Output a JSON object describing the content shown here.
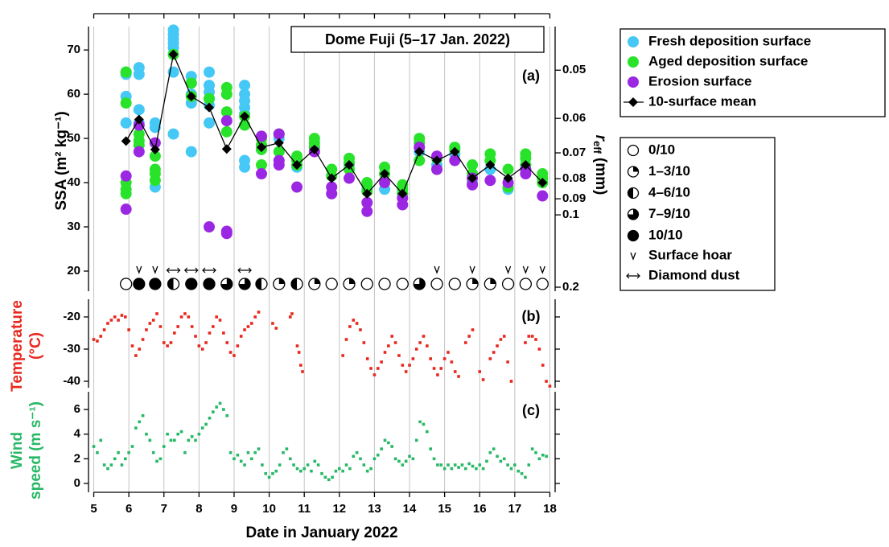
{
  "chart_data": [
    {
      "type": "scatter",
      "title": "Dome Fuji (5–17 Jan. 2022)",
      "panel_label": "(a)",
      "ylabel": "SSA (m² kg⁻¹)",
      "y2label": {
        "symbol": "r",
        "subscript": "eff",
        "unit": "(mm)"
      },
      "xlim": [
        4.85,
        18.15
      ],
      "ylim": [
        15.45,
        75.3
      ],
      "yticks": [
        20,
        30,
        40,
        50,
        60,
        70
      ],
      "y2ticks": [
        0.05,
        0.06,
        0.07,
        0.08,
        0.09,
        0.1,
        0.2
      ],
      "series": [
        {
          "name": "Fresh deposition surface",
          "color": "#45c8f5",
          "x": [
            5.92,
            5.92,
            5.92,
            5.92,
            6.29,
            6.29,
            6.29,
            6.29,
            6.75,
            6.75,
            6.75,
            7.27,
            7.27,
            7.27,
            7.27,
            7.27,
            7.27,
            7.27,
            7.78,
            7.78,
            7.78,
            7.78,
            7.78,
            8.29,
            8.29,
            8.29,
            8.29,
            8.29,
            8.29,
            9.3,
            9.3,
            9.3,
            9.3,
            9.3,
            9.3,
            9.3,
            9.78,
            10.28,
            10.79,
            11.29,
            11.78,
            12.28,
            12.79,
            13.29,
            13.8,
            14.28,
            14.78,
            15.29,
            15.79,
            16.3,
            16.81,
            17.31,
            17.79
          ],
          "values": [
            65,
            64.5,
            59.5,
            53.5,
            66,
            64.5,
            56.5,
            53.5,
            53.5,
            52.5,
            39,
            74.5,
            73.5,
            72.5,
            71.5,
            70.5,
            65,
            51,
            64,
            62.5,
            60,
            58,
            47,
            65,
            62,
            60.5,
            59,
            57.5,
            53.5,
            62,
            60,
            58.5,
            57,
            55.5,
            45,
            43.5,
            47.5,
            50,
            43.5,
            48,
            37.5,
            44,
            38.5,
            38.5,
            37.5,
            47,
            44,
            46.5,
            40,
            43,
            38.5,
            43,
            40
          ]
        },
        {
          "name": "Aged deposition surface",
          "color": "#28e32a",
          "x": [
            5.92,
            5.92,
            5.92,
            5.92,
            5.92,
            6.29,
            6.29,
            6.29,
            6.75,
            6.75,
            6.75,
            6.75,
            7.27,
            7.78,
            7.78,
            8.29,
            8.79,
            8.79,
            8.79,
            8.79,
            9.3,
            9.3,
            9.78,
            9.78,
            9.78,
            9.78,
            10.28,
            10.28,
            10.79,
            10.79,
            10.79,
            11.29,
            11.29,
            11.29,
            11.78,
            11.78,
            12.28,
            12.28,
            12.28,
            12.79,
            12.79,
            12.79,
            13.29,
            13.29,
            13.8,
            13.8,
            13.8,
            14.28,
            14.28,
            14.28,
            14.78,
            14.78,
            15.29,
            15.29,
            15.79,
            15.79,
            16.3,
            16.3,
            16.81,
            16.81,
            17.31,
            17.31,
            17.31,
            17.79,
            17.79,
            17.79
          ],
          "values": [
            65,
            58,
            40,
            38.5,
            37.5,
            51,
            49.5,
            48.5,
            46,
            43,
            42,
            40.5,
            69,
            62.5,
            59.5,
            59,
            61.5,
            60,
            56,
            51.5,
            53,
            55,
            50,
            48.5,
            47.5,
            44,
            51,
            47,
            46,
            45,
            44,
            50,
            49,
            48,
            43,
            41.5,
            45.5,
            44.5,
            43,
            40,
            39.5,
            38,
            43.5,
            42,
            39.5,
            38.5,
            37.5,
            50,
            49,
            45,
            45.5,
            43,
            48,
            47.5,
            44,
            42,
            46.5,
            45,
            43,
            39,
            46.5,
            45.5,
            44,
            42,
            41,
            40
          ]
        },
        {
          "name": "Erosion surface",
          "color": "#9b27e3",
          "x": [
            5.92,
            5.92,
            6.29,
            6.29,
            6.75,
            8.29,
            8.79,
            8.79,
            8.79,
            9.78,
            9.78,
            10.28,
            10.28,
            10.28,
            10.79,
            11.29,
            11.78,
            11.78,
            12.28,
            12.79,
            12.79,
            13.29,
            13.8,
            13.8,
            14.28,
            14.78,
            14.78,
            15.29,
            15.79,
            15.79,
            16.3,
            16.81,
            17.31,
            17.31,
            17.79
          ],
          "values": [
            41.5,
            34,
            53,
            47,
            49,
            30,
            29,
            28.5,
            54,
            50.5,
            42,
            51,
            45,
            44,
            39,
            47,
            39,
            37.5,
            41,
            35.5,
            33.5,
            40,
            36.5,
            35,
            48,
            46,
            43,
            45,
            41,
            39.5,
            40.5,
            40,
            43,
            42,
            37
          ]
        },
        {
          "name": "10-surface mean",
          "color": "#000000",
          "marker": "diamond",
          "line": true,
          "x": [
            5.92,
            6.29,
            6.75,
            7.27,
            7.78,
            8.29,
            8.79,
            9.3,
            9.78,
            10.28,
            10.79,
            11.29,
            11.78,
            12.28,
            12.79,
            13.29,
            13.8,
            14.28,
            14.78,
            15.29,
            15.79,
            16.3,
            16.81,
            17.31,
            17.79
          ],
          "values": [
            49.4,
            54.3,
            47.5,
            69,
            59.5,
            57,
            47.6,
            55,
            48,
            49,
            44,
            47.5,
            41,
            44,
            37.5,
            42,
            37.5,
            47,
            45,
            47,
            41,
            44,
            41,
            44,
            40
          ]
        }
      ],
      "obs_x": [
        5.92,
        6.29,
        6.75,
        7.27,
        7.78,
        8.29,
        8.79,
        9.3,
        9.78,
        10.28,
        10.79,
        11.29,
        11.78,
        12.28,
        12.79,
        13.29,
        13.8,
        14.28,
        14.78,
        15.29,
        15.79,
        16.3,
        16.81,
        17.31,
        17.79
      ],
      "cloud_legend": [
        "0/10",
        "1–3/10",
        "4–6/10",
        "7–9/10",
        "10/10"
      ],
      "cloud_cover": [
        "0/10",
        "10/10",
        "10/10",
        "4–6/10",
        "10/10",
        "10/10",
        "7–9/10",
        "7–9/10",
        "4–6/10",
        "1–3/10",
        "4–6/10",
        "1–3/10",
        "0/10",
        "1–3/10",
        "0/10",
        "0/10",
        "0/10",
        "7–9/10",
        "0/10",
        "0/10",
        "1–3/10",
        "1–3/10",
        "0/10",
        "0/10",
        "0/10"
      ],
      "surface_hoar": {
        "label": "Surface hoar",
        "x": [
          6.29,
          6.75,
          14.78,
          15.79,
          16.81,
          17.31,
          17.79
        ]
      },
      "diamond_dust": {
        "label": "Diamond dust",
        "x": [
          7.27,
          7.78,
          8.29,
          9.3
        ]
      }
    },
    {
      "type": "scatter",
      "panel_label": "(b)",
      "ylabel": [
        "Temperature",
        "(°C)"
      ],
      "xlim": [
        4.85,
        18.15
      ],
      "ylim": [
        -42,
        -14.5
      ],
      "yticks": [
        -20,
        -30,
        -40
      ],
      "series": [
        {
          "color": "#e8281e",
          "x": [
            5.0,
            5.1,
            5.2,
            5.3,
            5.4,
            5.5,
            5.6,
            5.7,
            5.8,
            5.9,
            6.0,
            6.1,
            6.2,
            6.3,
            6.4,
            6.5,
            6.6,
            6.7,
            6.8,
            6.9,
            7.0,
            7.1,
            7.2,
            7.3,
            7.4,
            7.5,
            7.6,
            7.7,
            7.8,
            7.9,
            8.0,
            8.1,
            8.2,
            8.3,
            8.4,
            8.5,
            8.6,
            8.7,
            8.8,
            8.9,
            9.0,
            9.1,
            9.2,
            9.3,
            9.4,
            9.5,
            9.6,
            9.7,
            10.1,
            10.2,
            10.6,
            10.65,
            10.8,
            10.85,
            10.9,
            10.95,
            12.1,
            12.2,
            12.3,
            12.4,
            12.5,
            12.6,
            12.7,
            12.8,
            12.9,
            13.0,
            13.1,
            13.2,
            13.3,
            13.4,
            13.5,
            13.6,
            13.7,
            13.8,
            13.9,
            14.0,
            14.1,
            14.2,
            14.3,
            14.4,
            14.5,
            14.6,
            14.7,
            14.8,
            14.9,
            15.0,
            15.1,
            15.2,
            15.3,
            15.4,
            15.6,
            15.7,
            15.8,
            16.0,
            16.1,
            16.3,
            16.4,
            16.5,
            16.6,
            16.7,
            16.8,
            16.9,
            17.3,
            17.4,
            17.5,
            17.6,
            17.7,
            17.8,
            17.9,
            18.0
          ],
          "values": [
            -27,
            -27.5,
            -26,
            -24,
            -22,
            -21,
            -20,
            -21,
            -19.5,
            -20,
            -24,
            -29,
            -32,
            -30,
            -27,
            -24,
            -22,
            -21,
            -19,
            -23,
            -28,
            -29,
            -28,
            -25,
            -23,
            -20,
            -19,
            -20,
            -23,
            -26,
            -29,
            -30,
            -28,
            -25,
            -23,
            -20,
            -21,
            -25,
            -28,
            -31,
            -32,
            -29,
            -26,
            -24,
            -23,
            -22,
            -20,
            -18.5,
            -22,
            -23.5,
            -20,
            -19,
            -29,
            -31,
            -35,
            -37,
            -32,
            -27,
            -23,
            -21,
            -22,
            -24,
            -28,
            -33,
            -36,
            -38,
            -36,
            -34,
            -31,
            -29,
            -26,
            -28,
            -32,
            -35,
            -37,
            -35,
            -33,
            -30,
            -28,
            -26,
            -29,
            -33,
            -36,
            -38,
            -36,
            -33,
            -31,
            -34,
            -37,
            -38.5,
            -28,
            -26,
            -24,
            -37,
            -39.5,
            -33,
            -31,
            -29,
            -27,
            -26,
            -34,
            -40,
            -28,
            -26,
            -26,
            -27,
            -30,
            -35,
            -40,
            -41.5
          ]
        }
      ]
    },
    {
      "type": "scatter",
      "panel_label": "(c)",
      "ylabel": [
        "Wind",
        "speed (m s⁻¹)"
      ],
      "xlabel": "Date in January 2022",
      "xlim": [
        4.85,
        18.15
      ],
      "xticks": [
        5,
        6,
        7,
        8,
        9,
        10,
        11,
        12,
        13,
        14,
        15,
        16,
        17,
        18
      ],
      "ylim": [
        -0.72,
        7.44
      ],
      "yticks": [
        0,
        2,
        4,
        6
      ],
      "series": [
        {
          "color": "#27b866",
          "x": [
            5.0,
            5.1,
            5.2,
            5.3,
            5.4,
            5.5,
            5.6,
            5.7,
            5.8,
            5.9,
            6.0,
            6.1,
            6.2,
            6.3,
            6.4,
            6.5,
            6.6,
            6.7,
            6.8,
            6.9,
            7.0,
            7.1,
            7.2,
            7.3,
            7.4,
            7.5,
            7.6,
            7.7,
            7.8,
            7.9,
            8.0,
            8.1,
            8.2,
            8.3,
            8.4,
            8.5,
            8.6,
            8.7,
            8.8,
            8.9,
            9.0,
            9.1,
            9.2,
            9.3,
            9.4,
            9.5,
            9.6,
            9.7,
            9.8,
            9.9,
            10.0,
            10.1,
            10.2,
            10.3,
            10.4,
            10.5,
            10.6,
            10.7,
            10.8,
            10.9,
            11.0,
            11.1,
            11.2,
            11.3,
            11.4,
            11.5,
            11.6,
            11.7,
            11.8,
            11.9,
            12.0,
            12.1,
            12.2,
            12.3,
            12.4,
            12.5,
            12.6,
            12.7,
            12.8,
            12.9,
            13.0,
            13.1,
            13.2,
            13.3,
            13.4,
            13.5,
            13.6,
            13.7,
            13.8,
            13.9,
            14.0,
            14.1,
            14.2,
            14.3,
            14.4,
            14.5,
            14.6,
            14.7,
            14.8,
            14.9,
            15.0,
            15.1,
            15.2,
            15.3,
            15.4,
            15.5,
            15.6,
            15.7,
            15.8,
            15.9,
            16.0,
            16.1,
            16.2,
            16.3,
            16.4,
            16.5,
            16.6,
            16.7,
            16.8,
            16.9,
            17.0,
            17.1,
            17.2,
            17.3,
            17.4,
            17.5,
            17.6,
            17.7,
            17.8,
            17.9
          ],
          "values": [
            3,
            2.5,
            3.5,
            1.5,
            1.2,
            1.5,
            2,
            2.5,
            1.5,
            2,
            2.5,
            3,
            4.5,
            5,
            5.5,
            4,
            3.5,
            2.5,
            1.8,
            2,
            3,
            4,
            3.5,
            3.5,
            4,
            4.2,
            2.5,
            3.5,
            3.8,
            3.5,
            4,
            4.5,
            4.8,
            5.3,
            5.8,
            6.2,
            6.5,
            6,
            5.5,
            2.5,
            2,
            2.3,
            1.8,
            1.5,
            2.5,
            2,
            2.5,
            2.8,
            1.5,
            0.8,
            0.5,
            0.8,
            1,
            1.5,
            2.5,
            2.8,
            2,
            1.5,
            1.2,
            1,
            1.2,
            1.5,
            1,
            1.8,
            1.5,
            0.8,
            0.5,
            0.3,
            0.5,
            1,
            1.2,
            1,
            1.5,
            1.2,
            2.2,
            2.5,
            2,
            1.5,
            1,
            1.2,
            2,
            2.3,
            2.8,
            3.5,
            3.3,
            3,
            2,
            1.8,
            1.5,
            1.8,
            2.2,
            2,
            3.5,
            5,
            4.8,
            4.2,
            2.8,
            2,
            1.5,
            1.5,
            1.2,
            1.5,
            1.2,
            1.5,
            1.3,
            1.5,
            1.2,
            1.6,
            1.4,
            1.2,
            1.5,
            1.2,
            1.8,
            2.5,
            2.8,
            2.2,
            1.8,
            2,
            1.5,
            1.2,
            1.5,
            1,
            0.8,
            0.5,
            1.5,
            2.8,
            2.5,
            2,
            2.3,
            2.2
          ]
        }
      ]
    }
  ]
}
